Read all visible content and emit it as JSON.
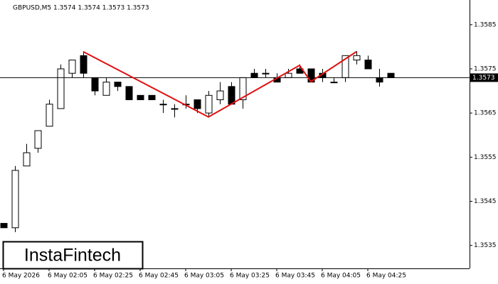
{
  "chart_data": {
    "type": "candlestick",
    "title": "GBPUSD,M5  1.3574 1.3574 1.3573 1.3573",
    "categories": [
      "6 May 2026",
      null,
      null,
      null,
      "6 May 02:05",
      null,
      null,
      null,
      "6 May 02:25",
      null,
      null,
      null,
      "6 May 02:45",
      null,
      null,
      null,
      "6 May 03:05",
      null,
      null,
      null,
      "6 May 03:25",
      null,
      null,
      null,
      "6 May 03:45",
      null,
      null,
      null,
      "6 May 04:05",
      null,
      null,
      null,
      "6 May 04:25",
      null,
      null
    ],
    "open": [
      1.354,
      1.3539,
      1.3553,
      1.3557,
      1.3562,
      1.3566,
      1.3574,
      1.3578,
      1.3573,
      1.3569,
      1.3572,
      1.3571,
      1.3569,
      1.3569,
      1.3567,
      1.3566,
      1.3567,
      1.3568,
      1.3565,
      1.3568,
      1.3571,
      1.3568,
      1.3574,
      1.3574,
      1.3573,
      1.3573,
      1.3575,
      1.3575,
      1.3574,
      1.3572,
      1.3573,
      1.3577,
      1.3577,
      1.3573,
      1.3574
    ],
    "high": [
      1.354,
      1.3553,
      1.3558,
      1.3561,
      1.3568,
      1.3576,
      1.3577,
      1.3579,
      1.3573,
      1.3573,
      1.3572,
      1.3571,
      1.3569,
      1.3569,
      1.3568,
      1.3567,
      1.3569,
      1.3568,
      1.357,
      1.3572,
      1.3572,
      1.3573,
      1.3575,
      1.3575,
      1.3574,
      1.3575,
      1.3576,
      1.3575,
      1.3575,
      1.3573,
      1.3578,
      1.3579,
      1.3578,
      1.3575,
      1.3574
    ],
    "low": [
      1.3539,
      1.3538,
      1.3553,
      1.3556,
      1.3562,
      1.3566,
      1.3573,
      1.3573,
      1.3569,
      1.3569,
      1.357,
      1.3568,
      1.3568,
      1.3568,
      1.3565,
      1.3564,
      1.3566,
      1.3565,
      1.3564,
      1.3567,
      1.3567,
      1.3566,
      1.3573,
      1.3573,
      1.3572,
      1.3573,
      1.3574,
      1.3572,
      1.3572,
      1.3572,
      1.3572,
      1.3576,
      1.3575,
      1.3571,
      1.3573
    ],
    "close": [
      1.3539,
      1.3552,
      1.3556,
      1.3561,
      1.3567,
      1.3575,
      1.3577,
      1.3574,
      1.357,
      1.3572,
      1.3571,
      1.3568,
      1.3568,
      1.3568,
      1.3567,
      1.3566,
      1.3567,
      1.3566,
      1.3569,
      1.357,
      1.3567,
      1.3573,
      1.3573,
      1.3574,
      1.3572,
      1.3574,
      1.3574,
      1.3572,
      1.3573,
      1.3572,
      1.3578,
      1.3578,
      1.3575,
      1.3572,
      1.3573
    ],
    "up_color": "#ffffff",
    "down_color": "#000000",
    "current_price": 1.3573,
    "current_price_label": "1.3573",
    "pattern": {
      "color": "#e01010",
      "x": [
        7,
        18,
        26,
        27,
        31
      ],
      "values": [
        1.35789,
        1.35641,
        1.35758,
        1.35721,
        1.35789
      ]
    },
    "ylim": [
      1.35298,
      1.35906
    ],
    "yticks": [
      1.3535,
      1.3545,
      1.3555,
      1.3565,
      1.3575,
      1.3585
    ],
    "logo": "InstaFintech"
  }
}
